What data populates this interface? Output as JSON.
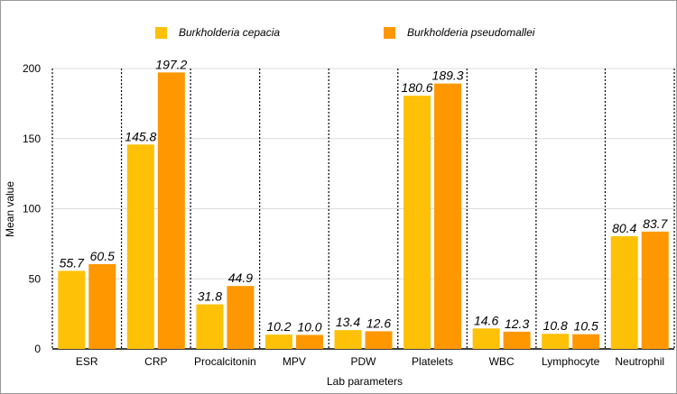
{
  "chart_data": {
    "type": "bar",
    "categories": [
      "ESR",
      "CRP",
      "Procalcitonin",
      "MPV",
      "PDW",
      "Platelets",
      "WBC",
      "Lymphocyte",
      "Neutrophil"
    ],
    "series": [
      {
        "name": "Burkholderia cepacia",
        "color": "#FFC107",
        "values": [
          55.7,
          145.8,
          31.8,
          10.2,
          13.4,
          180.6,
          14.6,
          10.8,
          80.4
        ],
        "labels": [
          "55.7",
          "145.8",
          "31.8",
          "10.2",
          "13.4",
          "180.6",
          "14.6",
          "10.8",
          "80.4"
        ]
      },
      {
        "name": "Burkholderia pseudomallei",
        "color": "#FF9800",
        "values": [
          60.5,
          197.2,
          44.9,
          10.0,
          12.6,
          189.3,
          12.3,
          10.5,
          83.7
        ],
        "labels": [
          "60.5",
          "197.2",
          "44.9",
          "10.0",
          "12.6",
          "189.3",
          "12.3",
          "10.5",
          "83.7"
        ]
      }
    ],
    "xlabel": "Lab parameters",
    "ylabel": "Mean value",
    "ylim": [
      0,
      200
    ],
    "yticks": [
      0,
      50,
      100,
      150,
      200
    ],
    "ytick_labels": [
      "0",
      "50",
      "100",
      "150",
      "200"
    ],
    "grid": true,
    "legend_position": "top"
  }
}
